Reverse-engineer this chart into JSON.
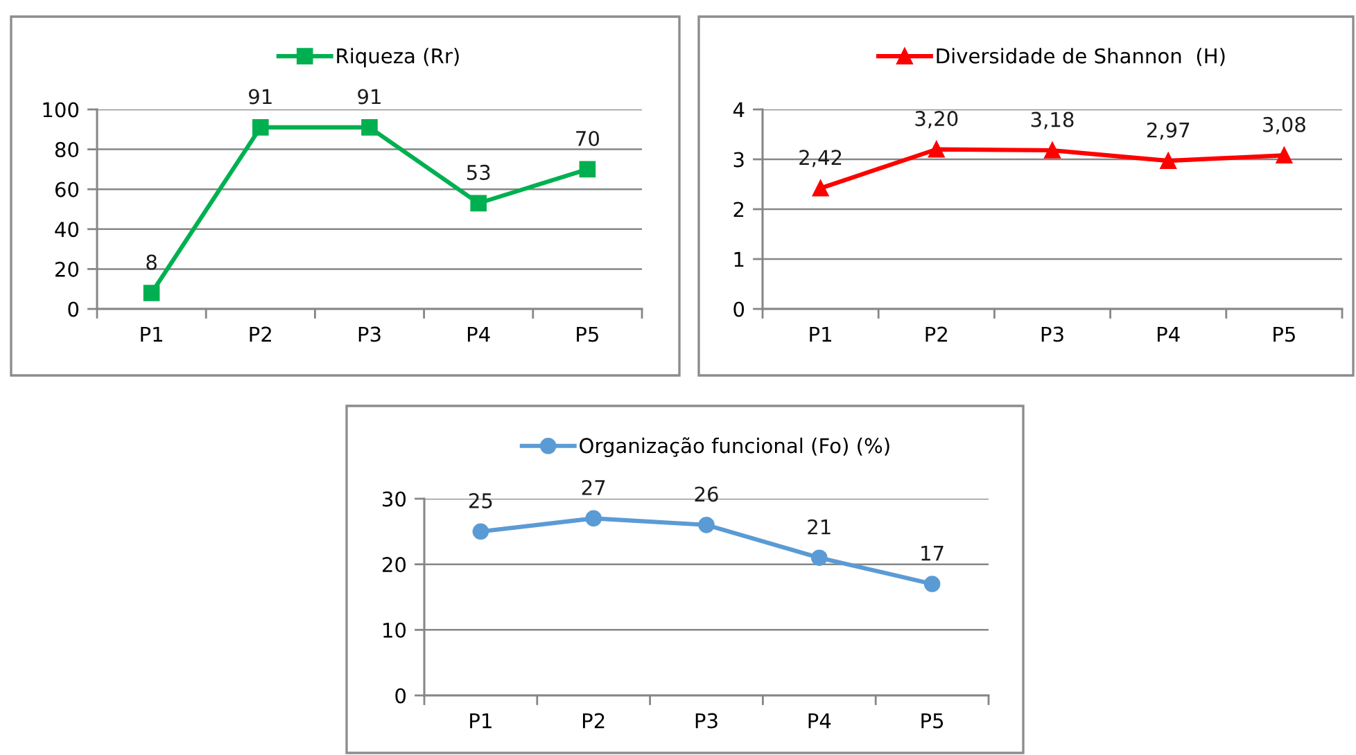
{
  "chart_data": [
    {
      "type": "line",
      "categories": [
        "P1",
        "P2",
        "P3",
        "P4",
        "P5"
      ],
      "series": [
        {
          "name": "Riqueza (Rr)",
          "color": "#00b050",
          "values": [
            8,
            91,
            91,
            53,
            70
          ]
        }
      ],
      "ylim": [
        0,
        100
      ],
      "yticks": [
        0,
        20,
        40,
        60,
        80,
        100
      ],
      "grid": "y",
      "legend": "top",
      "marker": "square",
      "line_style": "solid",
      "data_labels": true
    },
    {
      "type": "line",
      "categories": [
        "P1",
        "P2",
        "P3",
        "P4",
        "P5"
      ],
      "series": [
        {
          "name": "Diversidade de Shannon  (H)",
          "color": "#ff0000",
          "values": [
            2.42,
            3.2,
            3.18,
            2.97,
            3.08
          ],
          "value_labels": [
            "2,42",
            "3,20",
            "3,18",
            "2,97",
            "3,08"
          ]
        }
      ],
      "ylim": [
        0,
        4
      ],
      "yticks": [
        0,
        1,
        2,
        3,
        4
      ],
      "grid": "y",
      "legend": "top",
      "marker": "triangle",
      "line_style": "solid"
    },
    {
      "type": "line",
      "categories": [
        "P1",
        "P2",
        "P3",
        "P4",
        "P5"
      ],
      "series": [
        {
          "name": "Organização funcional (Fo) (%)",
          "color": "#5b9bd5",
          "values": [
            25,
            27,
            26,
            21,
            17
          ]
        }
      ],
      "ylim": [
        0,
        30
      ],
      "yticks": [
        0,
        10,
        20,
        30
      ],
      "grid": "y",
      "legend": "top",
      "marker": "circle",
      "line_style": "solid",
      "data_labels": true
    }
  ]
}
